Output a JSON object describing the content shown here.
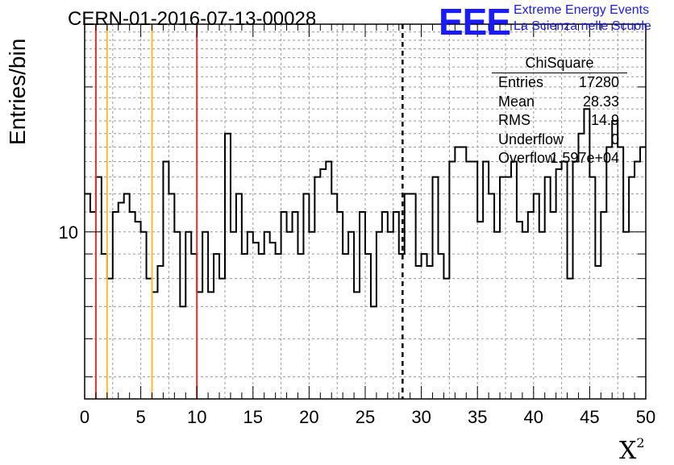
{
  "header": {
    "run_title": "CERN-01-2016-07-13-00028",
    "logo_text": "EEE",
    "logo_line1": "Extreme Energy Events",
    "logo_line2": "La Scienza nelle Scuole",
    "logo_color": "#1a1aff"
  },
  "stats_box": {
    "title": "ChiSquare",
    "rows": [
      {
        "key": "Entries",
        "value": "17280"
      },
      {
        "key": "Mean",
        "value": "28.33"
      },
      {
        "key": "RMS",
        "value": "14.9"
      },
      {
        "key": "Underflow",
        "value": "0"
      },
      {
        "key": "Overflow",
        "value": "1.597e+04"
      }
    ]
  },
  "chart_data": {
    "type": "histogram-step",
    "title": "",
    "xlabel": "X",
    "xlabel_superscript": "2",
    "ylabel": "Entries/bin",
    "xlim": [
      0,
      50
    ],
    "ylim": [
      4.5,
      27
    ],
    "y_scale": "log",
    "x_ticks": [
      "0",
      "5",
      "10",
      "15",
      "20",
      "25",
      "30",
      "35",
      "40",
      "45",
      "50"
    ],
    "y_ticks": [
      "10"
    ],
    "grid": true,
    "bin_width": 0.5,
    "bin_values": [
      12,
      11,
      13,
      9,
      8,
      11,
      11.5,
      12,
      11,
      10.5,
      10,
      8,
      7.5,
      8.5,
      14,
      12,
      10,
      7,
      10,
      9,
      7.5,
      10,
      7.5,
      9,
      8,
      16,
      10,
      12,
      9,
      10,
      9.5,
      9,
      10,
      9.5,
      9,
      11,
      10,
      11,
      9,
      12,
      10,
      13,
      13.5,
      14,
      12,
      11,
      9,
      10,
      7.5,
      11,
      9,
      7,
      10,
      11,
      10,
      11,
      9,
      12,
      12,
      8.5,
      9,
      8.5,
      13,
      9,
      8,
      14,
      15,
      15,
      14,
      14,
      10.5,
      14,
      12,
      10,
      13,
      13,
      14,
      10.5,
      10,
      11,
      12,
      10,
      13,
      11,
      13.5,
      14,
      8,
      14,
      16,
      18,
      13,
      8.5,
      11,
      15,
      17,
      15,
      10,
      13,
      14,
      15
    ],
    "reference_lines": [
      {
        "x": 1,
        "color": "#e53030",
        "style": "solid"
      },
      {
        "x": 2,
        "color": "#f2c12e",
        "style": "solid"
      },
      {
        "x": 6,
        "color": "#f2c12e",
        "style": "solid"
      },
      {
        "x": 10,
        "color": "#e53030",
        "style": "solid"
      },
      {
        "x": 28.33,
        "color": "#000000",
        "style": "dashed"
      }
    ]
  }
}
